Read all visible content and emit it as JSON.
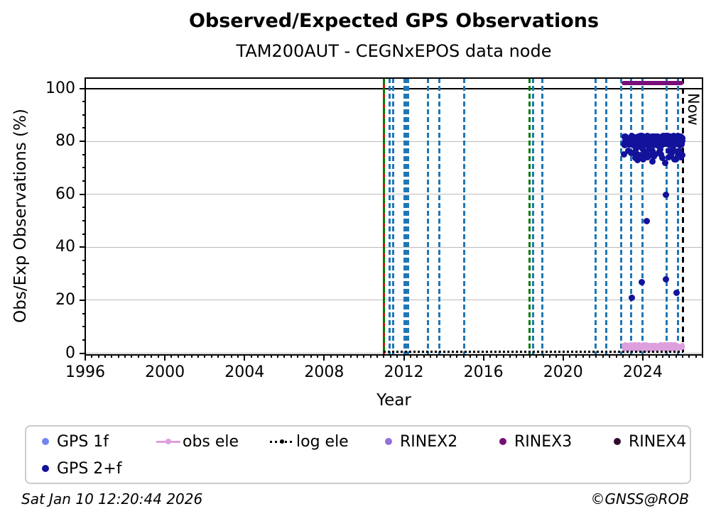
{
  "title": "Observed/Expected GPS Observations",
  "subtitle": "TAM200AUT - CEGNxEPOS data node",
  "axes": {
    "xlabel": "Year",
    "ylabel": "Obs/Exp Observations (%)",
    "x_ticks": [
      "1996",
      "2000",
      "2004",
      "2008",
      "2012",
      "2016",
      "2020",
      "2024"
    ],
    "x_tick_years": [
      1996,
      2000,
      2004,
      2008,
      2012,
      2016,
      2020,
      2024
    ],
    "y_ticks": [
      "0",
      "20",
      "40",
      "60",
      "80",
      "100"
    ],
    "y_tick_values": [
      0,
      20,
      40,
      60,
      80,
      100
    ],
    "xlim": [
      1996,
      2027
    ],
    "ylim": [
      -0.7,
      103.9
    ],
    "now_label": "Now"
  },
  "legend": {
    "items": [
      {
        "label": "GPS 1f",
        "color_key": "gps1f",
        "marker": "dot"
      },
      {
        "label": "obs ele",
        "color_key": "obsele",
        "marker": "line-dot"
      },
      {
        "label": "log ele",
        "color_key": "logele",
        "marker": "dotted-dot"
      },
      {
        "label": "RINEX2",
        "color_key": "rinex2",
        "marker": "dot"
      },
      {
        "label": "RINEX3",
        "color_key": "rinex3",
        "marker": "dot"
      },
      {
        "label": "RINEX4",
        "color_key": "rinex4",
        "marker": "dot"
      },
      {
        "label": "GPS 2+f",
        "color_key": "gps2f",
        "marker": "dot"
      }
    ]
  },
  "footer": {
    "timestamp": "Sat Jan 10 12:20:44 2026",
    "credit": "©GNSS@ROB"
  },
  "colors": {
    "gps1f": "#7385ee",
    "gps2f": "#12129b",
    "obsele": "#dda0dd",
    "logele": "#000000",
    "rinex2": "#9370db",
    "rinex3": "#780e77",
    "rinex4": "#31082f",
    "vline_blue": "#1f77b4",
    "vline_green": "#007d00",
    "vline_red": "#cf1010",
    "now_line": "#000000",
    "grid": "#bcbcbc",
    "hline_100": "#000000"
  },
  "chart_data": {
    "type": "scatter",
    "title": "Observed/Expected GPS Observations",
    "subtitle": "TAM200AUT - CEGNxEPOS data node",
    "xlabel": "Year",
    "ylabel": "Obs/Exp Observations (%)",
    "xlim": [
      1996,
      2027
    ],
    "ylim": [
      -0.7,
      103.9
    ],
    "grid": "horizontal-only",
    "legend_position": "below",
    "series": [
      {
        "name": "GPS 1f",
        "style": "scatter",
        "color_key": "gps1f",
        "size": 8,
        "band": {
          "x_start": 2023.05,
          "x_end": 2026.0,
          "y_center": 80.9,
          "y_spread": 1.2,
          "n": 70
        }
      },
      {
        "name": "GPS 2+f",
        "style": "scatter",
        "color_key": "gps2f",
        "size": 9,
        "band": {
          "x_start": 2023.05,
          "x_end": 2026.0,
          "y_center": 80.3,
          "y_spread": 1.7,
          "dip_chance": 0.08,
          "dip_max": 6,
          "n": 430
        },
        "outlier_points": [
          [
            2023.44,
            21
          ],
          [
            2023.94,
            26.8
          ],
          [
            2024.2,
            50
          ],
          [
            2025.17,
            59.7
          ],
          [
            2025.17,
            28
          ],
          [
            2025.7,
            22.9
          ],
          [
            2023.5,
            75.5
          ],
          [
            2023.62,
            73.8
          ],
          [
            2023.72,
            75.2
          ],
          [
            2023.85,
            74.2
          ],
          [
            2024.02,
            73.2
          ],
          [
            2024.15,
            75.8
          ],
          [
            2024.32,
            74.6
          ],
          [
            2024.5,
            72.3
          ],
          [
            2024.62,
            75.1
          ],
          [
            2024.85,
            76.2
          ],
          [
            2025.0,
            73.6
          ],
          [
            2025.12,
            71.8
          ],
          [
            2025.3,
            74.1
          ],
          [
            2025.45,
            75.4
          ],
          [
            2025.6,
            73.2
          ],
          [
            2025.78,
            74.6
          ],
          [
            2025.9,
            73.9
          ],
          [
            2025.97,
            74.9
          ]
        ]
      },
      {
        "name": "obs ele",
        "style": "scatter",
        "color_key": "obsele",
        "size": 7,
        "band": {
          "x_start": 2023.05,
          "x_end": 2026.0,
          "y_center": 2.3,
          "y_spread": 0.9,
          "n": 240
        }
      },
      {
        "name": "log ele",
        "style": "dotted-hline",
        "color_key": "logele",
        "y": 0.5,
        "x_start": 2011.0,
        "x_end": 2026.03
      },
      {
        "name": "RINEX2",
        "style": "scatter",
        "color_key": "rinex2",
        "size": 9,
        "points": []
      },
      {
        "name": "RINEX3",
        "style": "thick-hline",
        "color_key": "rinex3",
        "y": 102,
        "x_start": 2022.93,
        "x_end": 2026.03
      },
      {
        "name": "RINEX4",
        "style": "scatter",
        "color_key": "rinex4",
        "size": 9,
        "points": []
      }
    ],
    "event_lines": {
      "blue_dashed_years": [
        2011.28,
        2011.46,
        2012.03,
        2012.13,
        2012.23,
        2013.2,
        2013.78,
        2015.02,
        2018.5,
        2018.94,
        2021.62,
        2022.17,
        2022.9,
        2023.4,
        2023.97,
        2025.2,
        2025.76
      ],
      "green_red_years": [
        2011.0
      ],
      "green_dashed_years": [
        2018.32
      ],
      "now_year": 2026.03,
      "data_gap_years": [
        2024.07,
        2024.13
      ]
    }
  }
}
